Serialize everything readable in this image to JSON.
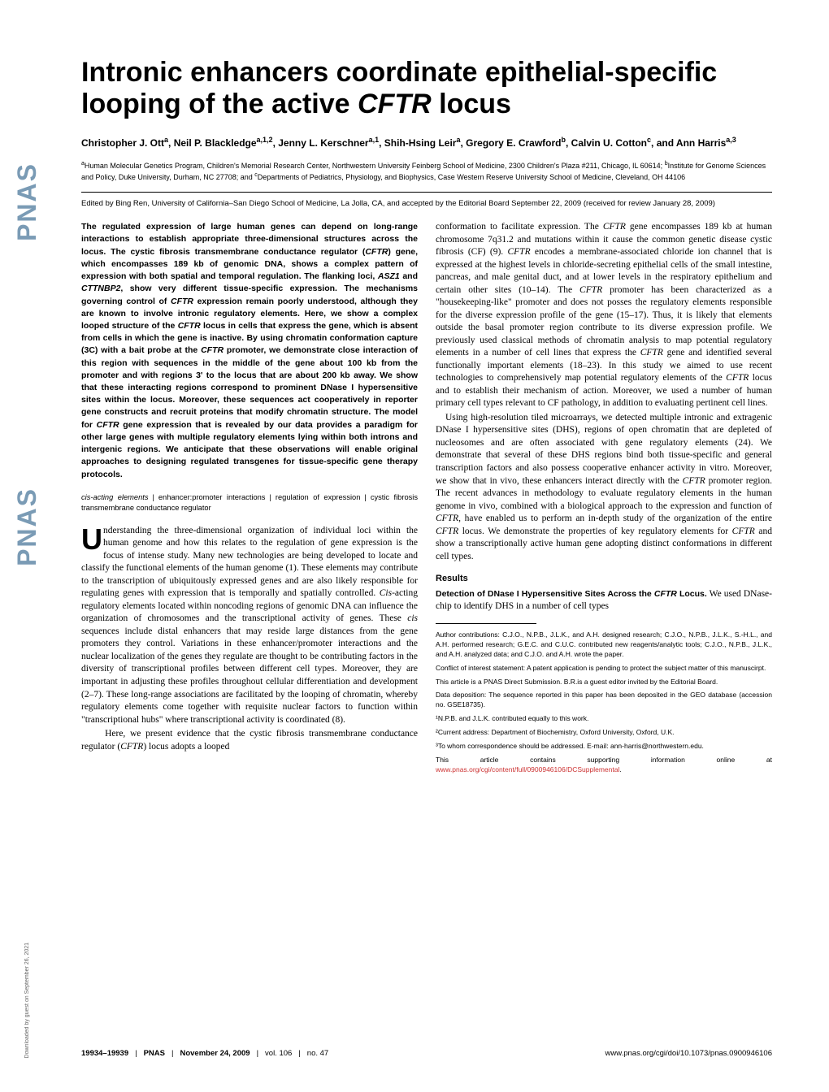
{
  "sidebar": {
    "text1": "PNAS",
    "text2": "PNAS",
    "download_note": "Downloaded by guest on September 26, 2021"
  },
  "title": {
    "line1": "Intronic enhancers coordinate epithelial-specific",
    "line2_text": "looping of the active ",
    "line2_italic": "CFTR",
    "line2_end": " locus"
  },
  "authors_html": "Christopher J. Ott<sup>a</sup>, Neil P. Blackledge<sup>a,1,2</sup>, Jenny L. Kerschner<sup>a,1</sup>, Shih-Hsing Leir<sup>a</sup>, Gregory E. Crawford<sup>b</sup>, Calvin U. Cotton<sup>c</sup>, and Ann Harris<sup>a,3</sup>",
  "affiliations_html": "<sup>a</sup>Human Molecular Genetics Program, Children's Memorial Research Center, Northwestern University Feinberg School of Medicine, 2300 Children's Plaza #211, Chicago, IL 60614; <sup>b</sup>Institute for Genome Sciences and Policy, Duke University, Durham, NC 27708; and <sup>c</sup>Departments of Pediatrics, Physiology, and Biophysics, Case Western Reserve University School of Medicine, Cleveland, OH 44106",
  "edited": "Edited by Bing Ren, University of California–San Diego School of Medicine, La Jolla, CA, and accepted by the Editorial Board September 22, 2009 (received for review January 28, 2009)",
  "abstract": "The regulated expression of large human genes can depend on long-range interactions to establish appropriate three-dimensional structures across the locus. The cystic fibrosis transmembrane conductance regulator (CFTR) gene, which encompasses 189 kb of genomic DNA, shows a complex pattern of expression with both spatial and temporal regulation. The flanking loci, ASZ1 and CTTNBP2, show very different tissue-specific expression. The mechanisms governing control of CFTR expression remain poorly understood, although they are known to involve intronic regulatory elements. Here, we show a complex looped structure of the CFTR locus in cells that express the gene, which is absent from cells in which the gene is inactive. By using chromatin conformation capture (3C) with a bait probe at the CFTR promoter, we demonstrate close interaction of this region with sequences in the middle of the gene about 100 kb from the promoter and with regions 3' to the locus that are about 200 kb away. We show that these interacting regions correspond to prominent DNase I hypersensitive sites within the locus. Moreover, these sequences act cooperatively in reporter gene constructs and recruit proteins that modify chromatin structure. The model for CFTR gene expression that is revealed by our data provides a paradigm for other large genes with multiple regulatory elements lying within both introns and intergenic regions. We anticipate that these observations will enable original approaches to designing regulated transgenes for tissue-specific gene therapy protocols.",
  "keywords": {
    "k1": "cis-acting elements",
    "k2": "enhancer:promoter interactions",
    "k3": "regulation of expression",
    "k4": "cystic fibrosis transmembrane conductance regulator"
  },
  "body": {
    "para1_first": "U",
    "para1": "nderstanding the three-dimensional organization of individual loci within the human genome and how this relates to the regulation of gene expression is the focus of intense study. Many new technologies are being developed to locate and classify the functional elements of the human genome (1). These elements may contribute to the transcription of ubiquitously expressed genes and are also likely responsible for regulating genes with expression that is temporally and spatially controlled. Cis-acting regulatory elements located within noncoding regions of genomic DNA can influence the organization of chromosomes and the transcriptional activity of genes. These cis sequences include distal enhancers that may reside large distances from the gene promoters they control. Variations in these enhancer/promoter interactions and the nuclear localization of the genes they regulate are thought to be contributing factors in the diversity of transcriptional profiles between different cell types. Moreover, they are important in adjusting these profiles throughout cellular differentiation and development (2–7). These long-range associations are facilitated by the looping of chromatin, whereby regulatory elements come together with requisite nuclear factors to function within \"transcriptional hubs\" where transcriptional activity is coordinated (8).",
    "para1_cont": "Here, we present evidence that the cystic fibrosis transmembrane conductance regulator (CFTR) locus adopts a looped",
    "col2_para1": "conformation to facilitate expression. The CFTR gene encompasses 189 kb at human chromosome 7q31.2 and mutations within it cause the common genetic disease cystic fibrosis (CF) (9). CFTR encodes a membrane-associated chloride ion channel that is expressed at the highest levels in chloride-secreting epithelial cells of the small intestine, pancreas, and male genital duct, and at lower levels in the respiratory epithelium and certain other sites (10–14). The CFTR promoter has been characterized as a \"housekeeping-like\" promoter and does not posses the regulatory elements responsible for the diverse expression profile of the gene (15–17). Thus, it is likely that elements outside the basal promoter region contribute to its diverse expression profile. We previously used classical methods of chromatin analysis to map potential regulatory elements in a number of cell lines that express the CFTR gene and identified several functionally important elements (18–23). In this study we aimed to use recent technologies to comprehensively map potential regulatory elements of the CFTR locus and to establish their mechanism of action. Moreover, we used a number of human primary cell types relevant to CF pathology, in addition to evaluating pertinent cell lines.",
    "col2_para2": "Using high-resolution tiled microarrays, we detected multiple intronic and extragenic DNase I hypersensitive sites (DHS), regions of open chromatin that are depleted of nucleosomes and are often associated with gene regulatory elements (24). We demonstrate that several of these DHS regions bind both tissue-specific and general transcription factors and also possess cooperative enhancer activity in vitro. Moreover, we show that in vivo, these enhancers interact directly with the CFTR promoter region. The recent advances in methodology to evaluate regulatory elements in the human genome in vivo, combined with a biological approach to the expression and function of CFTR, have enabled us to perform an in-depth study of the organization of the entire CFTR locus. We demonstrate the properties of key regulatory elements for CFTR and show a transcriptionally active human gene adopting distinct conformations in different cell types.",
    "results_head": "Results",
    "results_sub": "Detection of DNase I Hypersensitive Sites Across the CFTR Locus.",
    "results_text": " We used DNase-chip to identify DHS in a number of cell types"
  },
  "footnotes": {
    "contrib": "Author contributions: C.J.O., N.P.B., J.L.K., and A.H. designed research; C.J.O., N.P.B., J.L.K., S.-H.L., and A.H. performed research; G.E.C. and C.U.C. contributed new reagents/analytic tools; C.J.O., N.P.B., J.L.K., and A.H. analyzed data; and C.J.O. and A.H. wrote the paper.",
    "conflict": "Conflict of interest statement: A patent application is pending to protect the subject matter of this manuscirpt.",
    "direct": "This article is a PNAS Direct Submission. B.R.is a guest editor invited by the Editorial Board.",
    "data": "Data deposition: The sequence reported in this paper has been deposited in the GEO database (accession no. GSE18735).",
    "fn1": "¹N.P.B. and J.L.K. contributed equally to this work.",
    "fn2": "²Current address: Department of Biochemistry, Oxford University, Oxford, U.K.",
    "fn3": "³To whom correspondence should be addressed. E-mail: ann-harris@northwestern.edu.",
    "supp_text": "This article contains supporting information online at ",
    "supp_link": "www.pnas.org/cgi/content/full/0900946106/DCSupplemental"
  },
  "footer": {
    "pages": "19934–19939",
    "journal": "PNAS",
    "date": "November 24, 2009",
    "vol": "vol. 106",
    "issue": "no. 47",
    "doi": "www.pnas.org/cgi/doi/10.1073/pnas.0900946106"
  },
  "colors": {
    "pnas_blue": "#7a9bb5",
    "link_red": "#cc3333",
    "text": "#000000",
    "bg": "#ffffff"
  },
  "fonts": {
    "title_size": 34,
    "author_size": 12,
    "affil_size": 9,
    "body_size": 11.5,
    "footnote_size": 8.5
  }
}
